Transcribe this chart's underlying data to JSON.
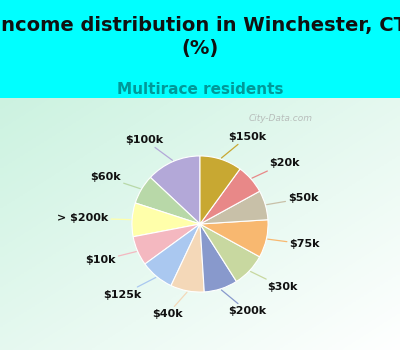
{
  "title": "Income distribution in Winchester, CT\n(%)",
  "subtitle": "Multirace residents",
  "watermark": "City-Data.com",
  "labels": [
    "$100k",
    "$60k",
    "> $200k",
    "$10k",
    "$125k",
    "$40k",
    "$200k",
    "$30k",
    "$75k",
    "$50k",
    "$20k",
    "$150k"
  ],
  "values": [
    13,
    7,
    8,
    7,
    8,
    8,
    8,
    8,
    9,
    7,
    7,
    10
  ],
  "colors": [
    "#b3a8d8",
    "#b8d8a8",
    "#ffffaa",
    "#f4b8c0",
    "#aac8f0",
    "#f4d8b8",
    "#8899cc",
    "#c8d8a0",
    "#f8b870",
    "#c8c0a8",
    "#e88888",
    "#c8a832"
  ],
  "bg_color_cyan": "#00ffff",
  "startangle": 90,
  "title_fontsize": 14,
  "subtitle_fontsize": 11,
  "label_fontsize": 8,
  "title_color": "#111111",
  "subtitle_color": "#009999"
}
